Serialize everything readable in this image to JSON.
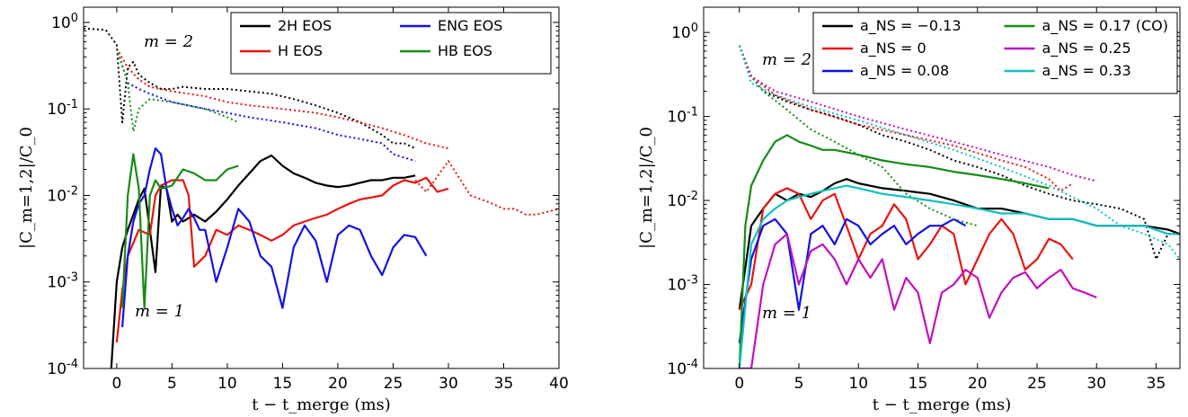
{
  "chart_data": [
    {
      "type": "line",
      "xlabel": "t − t_merge (ms)",
      "ylabel": "|C_m=1,2|/C_0",
      "xlim": [
        -3,
        40
      ],
      "ylim": [
        0.0001,
        1.5
      ],
      "yscale": "log",
      "xticks": [
        "0",
        "5",
        "10",
        "15",
        "20",
        "25",
        "30",
        "35",
        "40"
      ],
      "yticks": [
        "10^0",
        "10^-1",
        "10^-2",
        "10^-3",
        "10^-4"
      ],
      "annotations": [
        "m = 2",
        "m = 1"
      ],
      "legend_position": "top-right",
      "series": [
        {
          "name": "2H EOS",
          "color": "#000000",
          "mode": "m=1",
          "x": [
            -0.5,
            0,
            0.5,
            1,
            1.5,
            2,
            2.5,
            3,
            3.5,
            4,
            4.5,
            5,
            5.5,
            6,
            7,
            8,
            9,
            10,
            11,
            12,
            13,
            14,
            15,
            16,
            17,
            18,
            19,
            20,
            21,
            22,
            23,
            24,
            25,
            26,
            27
          ],
          "y": [
            0.0001,
            0.001,
            0.0025,
            0.004,
            0.006,
            0.009,
            0.012,
            0.004,
            0.0013,
            0.013,
            0.012,
            0.005,
            0.006,
            0.005,
            0.006,
            0.005,
            0.0065,
            0.009,
            0.013,
            0.018,
            0.025,
            0.029,
            0.022,
            0.018,
            0.016,
            0.014,
            0.013,
            0.0125,
            0.013,
            0.014,
            0.015,
            0.015,
            0.016,
            0.016,
            0.017
          ]
        },
        {
          "name": "2H EOS m=2",
          "color": "#000000",
          "mode": "m=2",
          "x": [
            -3,
            -1,
            0,
            0.5,
            1,
            1.5,
            2,
            3,
            4,
            5,
            6,
            8,
            10,
            12,
            14,
            16,
            18,
            20,
            22,
            24,
            25,
            26,
            27
          ],
          "y": [
            0.85,
            0.82,
            0.55,
            0.07,
            0.3,
            0.35,
            0.25,
            0.2,
            0.17,
            0.17,
            0.18,
            0.17,
            0.17,
            0.16,
            0.15,
            0.13,
            0.11,
            0.09,
            0.07,
            0.05,
            0.04,
            0.04,
            0.035
          ]
        },
        {
          "name": "H EOS",
          "color": "#e8140f",
          "mode": "m=1",
          "x": [
            0,
            0.5,
            1,
            2,
            3,
            3.5,
            4,
            5,
            6,
            6.5,
            7,
            8,
            9,
            10,
            11,
            12,
            13,
            14,
            15,
            16,
            17,
            18,
            19,
            20,
            21,
            22,
            24,
            25,
            26,
            27,
            28,
            29,
            30
          ],
          "y": [
            0.0002,
            0.0008,
            0.002,
            0.004,
            0.0035,
            0.01,
            0.013,
            0.015,
            0.015,
            0.01,
            0.0015,
            0.002,
            0.004,
            0.0035,
            0.0045,
            0.004,
            0.0035,
            0.003,
            0.0035,
            0.0045,
            0.005,
            0.0055,
            0.006,
            0.007,
            0.008,
            0.009,
            0.01,
            0.013,
            0.015,
            0.014,
            0.016,
            0.011,
            0.012
          ]
        },
        {
          "name": "H EOS tail",
          "color": "#e8140f",
          "mode": "m=1 dotted",
          "x": [
            27,
            28,
            30,
            32,
            33,
            34,
            35,
            36,
            37,
            38,
            40
          ],
          "y": [
            0.015,
            0.011,
            0.025,
            0.01,
            0.009,
            0.008,
            0.007,
            0.007,
            0.006,
            0.006,
            0.007
          ]
        },
        {
          "name": "H EOS m=2",
          "color": "#e8140f",
          "mode": "m=2",
          "x": [
            0,
            1,
            2,
            3,
            5,
            8,
            10,
            12,
            15,
            18,
            20,
            22,
            24,
            26,
            28,
            30
          ],
          "y": [
            0.5,
            0.3,
            0.22,
            0.18,
            0.16,
            0.14,
            0.12,
            0.11,
            0.1,
            0.09,
            0.08,
            0.07,
            0.06,
            0.05,
            0.04,
            0.035
          ]
        },
        {
          "name": "ENG EOS",
          "color": "#1410e8",
          "mode": "m=1",
          "x": [
            0.5,
            1,
            1.5,
            2,
            2.5,
            3,
            3.5,
            4,
            4.5,
            5,
            5.5,
            6,
            6.5,
            7,
            7.5,
            8,
            9,
            10,
            11,
            12,
            13,
            14,
            15,
            16,
            17,
            18,
            19,
            20,
            21,
            22,
            23,
            24,
            25,
            26,
            27,
            28
          ],
          "y": [
            0.0003,
            0.002,
            0.005,
            0.008,
            0.01,
            0.02,
            0.035,
            0.03,
            0.012,
            0.007,
            0.0045,
            0.0055,
            0.007,
            0.0055,
            0.004,
            0.004,
            0.001,
            0.0025,
            0.007,
            0.005,
            0.002,
            0.0015,
            0.0005,
            0.0025,
            0.0045,
            0.003,
            0.001,
            0.0035,
            0.0045,
            0.004,
            0.002,
            0.0012,
            0.0025,
            0.0035,
            0.0033,
            0.002
          ]
        },
        {
          "name": "ENG EOS m=2",
          "color": "#1410e8",
          "mode": "m=2",
          "x": [
            0,
            1,
            2,
            3,
            5,
            8,
            10,
            12,
            15,
            18,
            20,
            22,
            24,
            25,
            27
          ],
          "y": [
            0.5,
            0.2,
            0.17,
            0.15,
            0.12,
            0.1,
            0.09,
            0.08,
            0.07,
            0.06,
            0.05,
            0.045,
            0.04,
            0.03,
            0.025
          ]
        },
        {
          "name": "HB EOS",
          "color": "#148c14",
          "mode": "m=1",
          "x": [
            0.5,
            1,
            1.5,
            2,
            2.5,
            3,
            3.5,
            4,
            5,
            6,
            7,
            8,
            9,
            10,
            11
          ],
          "y": [
            0.0005,
            0.01,
            0.03,
            0.012,
            0.0005,
            0.01,
            0.015,
            0.012,
            0.013,
            0.02,
            0.018,
            0.015,
            0.015,
            0.02,
            0.022
          ]
        },
        {
          "name": "HB EOS m=2",
          "color": "#148c14",
          "mode": "m=2",
          "x": [
            0,
            1,
            1.5,
            2,
            3,
            5,
            8,
            10,
            11
          ],
          "y": [
            0.5,
            0.2,
            0.055,
            0.1,
            0.13,
            0.12,
            0.1,
            0.08,
            0.07
          ]
        }
      ],
      "legend": [
        {
          "label": "2H EOS",
          "color": "#000000"
        },
        {
          "label": "ENG EOS",
          "color": "#1410e8"
        },
        {
          "label": "H EOS",
          "color": "#e8140f"
        },
        {
          "label": "HB EOS",
          "color": "#148c14"
        }
      ]
    },
    {
      "type": "line",
      "xlabel": "t − t_merge (ms)",
      "ylabel": "|C_m=1,2|/C_0",
      "xlim": [
        -3,
        37
      ],
      "ylim": [
        0.0001,
        2
      ],
      "yscale": "log",
      "xticks": [
        "0",
        "5",
        "10",
        "15",
        "20",
        "25",
        "30",
        "35"
      ],
      "yticks": [
        "10^0",
        "10^-1",
        "10^-2",
        "10^-3",
        "10^-4"
      ],
      "annotations": [
        "m = 2",
        "m = 1"
      ],
      "legend_position": "top-right",
      "legend": [
        {
          "label": "a_NS = −0.13",
          "color": "#000000"
        },
        {
          "label": "a_NS = 0.17 (CO)",
          "color": "#148c14"
        },
        {
          "label": "a_NS = 0",
          "color": "#e8140f"
        },
        {
          "label": "a_NS = 0.25",
          "color": "#c010c0"
        },
        {
          "label": "a_NS = 0.08",
          "color": "#1410e8"
        },
        {
          "label": "a_NS = 0.33",
          "color": "#10c0c0"
        }
      ],
      "series": [
        {
          "name": "a_NS = −0.13",
          "color": "#000000",
          "mode": "m=1",
          "x": [
            0,
            1,
            2,
            3,
            4,
            5,
            6,
            7,
            8,
            9,
            10,
            12,
            14,
            16,
            18,
            20,
            22,
            24,
            26,
            28,
            30,
            32,
            34,
            36,
            37
          ],
          "y": [
            0.0005,
            0.005,
            0.008,
            0.012,
            0.01,
            0.012,
            0.011,
            0.013,
            0.016,
            0.018,
            0.016,
            0.014,
            0.013,
            0.012,
            0.01,
            0.008,
            0.008,
            0.007,
            0.006,
            0.006,
            0.005,
            0.005,
            0.005,
            0.0045,
            0.004
          ]
        },
        {
          "name": "a_NS = −0.13 m=2",
          "color": "#000000",
          "mode": "m=2",
          "x": [
            0,
            1,
            2,
            4,
            6,
            8,
            10,
            12,
            14,
            16,
            18,
            20,
            22,
            24,
            26,
            28,
            30,
            32,
            34,
            35,
            36,
            37
          ],
          "y": [
            0.7,
            0.3,
            0.2,
            0.15,
            0.12,
            0.1,
            0.08,
            0.06,
            0.05,
            0.04,
            0.03,
            0.025,
            0.02,
            0.015,
            0.012,
            0.01,
            0.009,
            0.008,
            0.006,
            0.002,
            0.004,
            0.004
          ]
        },
        {
          "name": "a_NS = 0",
          "color": "#e8140f",
          "mode": "m=1",
          "x": [
            0,
            1,
            2,
            3,
            4,
            5,
            6,
            7,
            8,
            9,
            10,
            11,
            12,
            13,
            14,
            15,
            16,
            17,
            18,
            19,
            20,
            21,
            22,
            23,
            24,
            25,
            26,
            27,
            28
          ],
          "y": [
            0.0005,
            0.001,
            0.008,
            0.012,
            0.014,
            0.012,
            0.006,
            0.01,
            0.012,
            0.005,
            0.002,
            0.004,
            0.005,
            0.009,
            0.006,
            0.002,
            0.003,
            0.005,
            0.004,
            0.001,
            0.002,
            0.004,
            0.006,
            0.004,
            0.0015,
            0.002,
            0.0035,
            0.003,
            0.002
          ]
        },
        {
          "name": "a_NS = 0 m=2",
          "color": "#e8140f",
          "mode": "m=2",
          "x": [
            0,
            1,
            3,
            6,
            10,
            14,
            18,
            22,
            24,
            26,
            27,
            28
          ],
          "y": [
            0.7,
            0.3,
            0.18,
            0.12,
            0.08,
            0.06,
            0.045,
            0.03,
            0.025,
            0.018,
            0.013,
            0.016
          ]
        },
        {
          "name": "a_NS = 0.08",
          "color": "#1410e8",
          "mode": "m=1",
          "x": [
            0,
            1,
            2,
            3,
            4,
            5,
            6,
            7,
            8,
            9,
            10,
            11,
            12,
            13,
            14,
            15,
            16,
            17,
            18,
            19
          ],
          "y": [
            0.0002,
            0.002,
            0.005,
            0.006,
            0.004,
            0.0005,
            0.004,
            0.005,
            0.003,
            0.006,
            0.005,
            0.003,
            0.004,
            0.005,
            0.003,
            0.004,
            0.005,
            0.005,
            0.006,
            0.005
          ]
        },
        {
          "name": "a_NS = 0.17 (CO)",
          "color": "#148c14",
          "mode": "m=1",
          "x": [
            0,
            0.5,
            1,
            2,
            3,
            4,
            5,
            6,
            7,
            8,
            10,
            12,
            14,
            16,
            18,
            20,
            22,
            24,
            26
          ],
          "y": [
            0.0001,
            0.005,
            0.015,
            0.03,
            0.05,
            0.06,
            0.05,
            0.045,
            0.04,
            0.04,
            0.035,
            0.03,
            0.027,
            0.025,
            0.022,
            0.02,
            0.018,
            0.016,
            0.014
          ]
        },
        {
          "name": "a_NS = 0.17 (CO) m=2",
          "color": "#148c14",
          "mode": "m=2",
          "x": [
            0,
            1,
            2,
            4,
            6,
            8,
            10,
            12,
            14,
            16,
            18,
            20
          ],
          "y": [
            0.7,
            0.3,
            0.2,
            0.12,
            0.07,
            0.05,
            0.035,
            0.025,
            0.012,
            0.008,
            0.006,
            0.005
          ]
        },
        {
          "name": "a_NS = 0.25",
          "color": "#c010c0",
          "mode": "m=1",
          "x": [
            0,
            1,
            2,
            3,
            4,
            5,
            6,
            7,
            8,
            9,
            10,
            11,
            12,
            13,
            14,
            15,
            16,
            17,
            18,
            19,
            20,
            21,
            22,
            23,
            24,
            25,
            26,
            27,
            28,
            29,
            30
          ],
          "y": [
            0.0001,
            0.0001,
            0.001,
            0.003,
            0.004,
            0.001,
            0.0025,
            0.003,
            0.002,
            0.001,
            0.002,
            0.0012,
            0.002,
            0.0005,
            0.0012,
            0.0008,
            0.0002,
            0.0008,
            0.001,
            0.0015,
            0.0012,
            0.0004,
            0.0008,
            0.0012,
            0.0014,
            0.0009,
            0.0012,
            0.0015,
            0.0009,
            0.0008,
            0.0007
          ]
        },
        {
          "name": "a_NS = 0.25 m=2",
          "color": "#c010c0",
          "mode": "m=2",
          "x": [
            0,
            1,
            3,
            6,
            10,
            14,
            18,
            22,
            26,
            28,
            30
          ],
          "y": [
            0.7,
            0.3,
            0.2,
            0.15,
            0.1,
            0.07,
            0.05,
            0.035,
            0.025,
            0.02,
            0.017
          ]
        },
        {
          "name": "a_NS = 0.33",
          "color": "#10c0c0",
          "mode": "m=1",
          "x": [
            0,
            1,
            2,
            3,
            4,
            5,
            6,
            7,
            8,
            9,
            10,
            12,
            14,
            16,
            18,
            20,
            22,
            24,
            26,
            28,
            30,
            32,
            34,
            36,
            37
          ],
          "y": [
            0.0001,
            0.003,
            0.006,
            0.008,
            0.01,
            0.011,
            0.012,
            0.013,
            0.014,
            0.015,
            0.014,
            0.012,
            0.011,
            0.01,
            0.009,
            0.008,
            0.007,
            0.007,
            0.006,
            0.006,
            0.005,
            0.005,
            0.005,
            0.004,
            0.004
          ]
        },
        {
          "name": "a_NS = 0.33 m=2",
          "color": "#10c0c0",
          "mode": "m=2",
          "x": [
            0,
            1,
            3,
            6,
            10,
            14,
            18,
            22,
            26,
            30,
            32,
            34,
            36,
            37
          ],
          "y": [
            0.7,
            0.25,
            0.18,
            0.13,
            0.09,
            0.06,
            0.04,
            0.025,
            0.015,
            0.008,
            0.005,
            0.004,
            0.003,
            0.002
          ]
        }
      ]
    }
  ]
}
